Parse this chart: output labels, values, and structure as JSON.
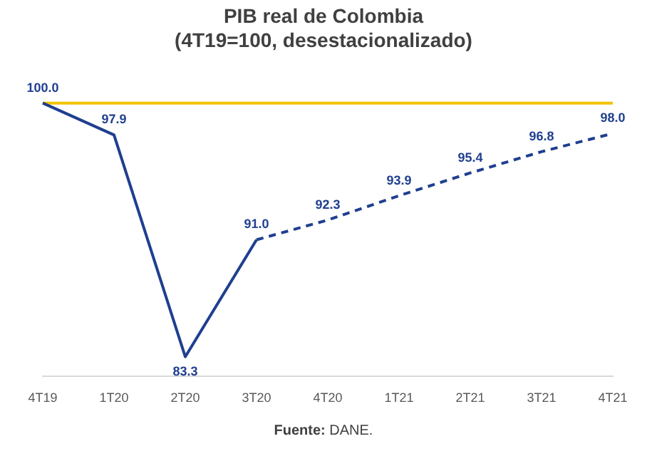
{
  "chart_data": {
    "type": "line",
    "title": "PIB real de Colombia",
    "subtitle": "(4T19=100, desestacionalizado)",
    "categories": [
      "4T19",
      "1T20",
      "2T20",
      "3T20",
      "4T20",
      "1T21",
      "2T21",
      "3T21",
      "4T21"
    ],
    "series": [
      {
        "color": "#1f3f8f",
        "line_style": "solid",
        "values": [
          100.0,
          97.9,
          83.3,
          91.0,
          null,
          null,
          null,
          null,
          null
        ],
        "value_labels": [
          "100.0",
          "97.9",
          "83.3",
          "91.0",
          null,
          null,
          null,
          null,
          null
        ]
      },
      {
        "color": "#1f3f8f",
        "line_style": "dashed",
        "values": [
          null,
          null,
          null,
          91.0,
          92.3,
          93.9,
          95.4,
          96.8,
          98.0
        ],
        "value_labels": [
          null,
          null,
          null,
          null,
          "92.3",
          "93.9",
          "95.4",
          "96.8",
          "98.0"
        ]
      }
    ],
    "relative": false,
    "ref_lines": [
      {
        "axis": "y",
        "value": 100,
        "color": "#f2c200"
      }
    ],
    "marker": "none",
    "grid": false,
    "legend": false,
    "annotations": [
      "Fuente: DANE."
    ]
  }
}
